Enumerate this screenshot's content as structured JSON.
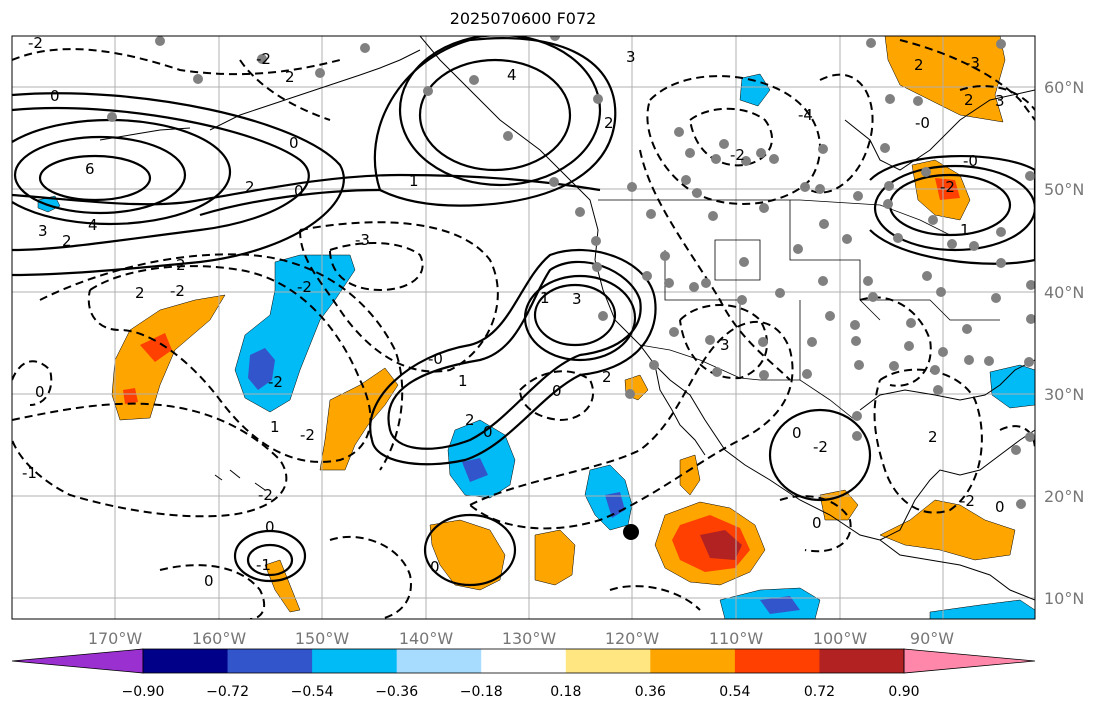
{
  "title": "2025070600 F072",
  "lon_ticks": [
    "170°W",
    "160°W",
    "150°W",
    "140°W",
    "130°W",
    "120°W",
    "110°W",
    "100°W",
    "90°W"
  ],
  "lat_ticks": [
    "60°N",
    "50°N",
    "40°N",
    "30°N",
    "20°N",
    "10°N"
  ],
  "colorbar": {
    "colors": [
      "#9b30d0",
      "#000088",
      "#3355cc",
      "#00bbf5",
      "#a8dcff",
      "#ffffff",
      "#ffe680",
      "#ffa500",
      "#ff4000",
      "#b22222",
      "#ff88aa"
    ],
    "labels": [
      "−0.90",
      "−0.72",
      "−0.54",
      "−0.36",
      "−0.18",
      "0.18",
      "0.36",
      "0.54",
      "0.72",
      "0.90"
    ]
  },
  "contour_labels": [
    "-2",
    "0",
    "2",
    "4",
    "3",
    "2",
    "-2",
    "6",
    "4",
    "2",
    "0",
    "1",
    "2",
    "3",
    "-3",
    "2",
    "-2",
    "0",
    "-2",
    "1",
    "2",
    "3",
    "3",
    "-0",
    "-2",
    "0",
    "2",
    "0",
    "1",
    "1",
    "2",
    "-2",
    "-1",
    "0",
    "0",
    "-1",
    "0",
    "-2",
    "0",
    "0",
    "-2",
    "0",
    "2",
    "3",
    "2",
    "2",
    "-3",
    "-4",
    "-2",
    "-2",
    "-0",
    "-0",
    "1",
    "0",
    "-2"
  ],
  "marker_color": "#000000",
  "station_color": "#808080"
}
